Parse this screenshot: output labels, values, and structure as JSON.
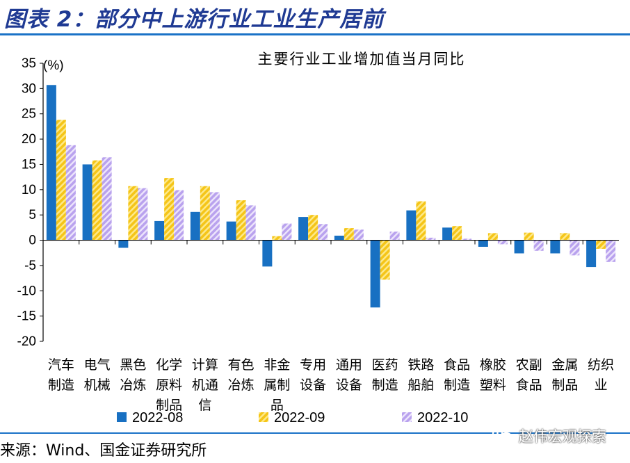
{
  "figure": {
    "title": "图表 2：部分中上游行业工业生产居前",
    "source": "来源：Wind、国金证券研究所",
    "watermark": "赵伟宏观探索"
  },
  "colors": {
    "accent": "#1a72c7",
    "title": "#1f3a93",
    "s1": "#1870c2",
    "s2": "#f5c518",
    "s3": "#b9a2ee"
  },
  "chart_data": {
    "type": "bar",
    "title": "主要行业工业增加值当月同比",
    "unit": "(%)",
    "ylim": [
      -20,
      35
    ],
    "yticks": [
      35,
      30,
      25,
      20,
      15,
      10,
      5,
      0,
      -5,
      -10,
      -15,
      -20
    ],
    "categories": [
      [
        "汽车",
        "制造"
      ],
      [
        "电气",
        "机械"
      ],
      [
        "黑色",
        "冶炼"
      ],
      [
        "化学",
        "原料",
        "制品"
      ],
      [
        "计算",
        "机通",
        "信"
      ],
      [
        "有色",
        "冶炼"
      ],
      [
        "非金",
        "属制",
        "品"
      ],
      [
        "专用",
        "设备"
      ],
      [
        "通用",
        "设备"
      ],
      [
        "医药",
        "制造"
      ],
      [
        "铁路",
        "船舶"
      ],
      [
        "食品",
        "制造"
      ],
      [
        "橡胶",
        "塑料"
      ],
      [
        "农副",
        "食品"
      ],
      [
        "金属",
        "制品"
      ],
      [
        "纺织",
        "业"
      ]
    ],
    "series": [
      {
        "name": "2022-08",
        "pattern": "solid",
        "values": [
          30.7,
          15.0,
          -1.5,
          3.8,
          5.6,
          3.7,
          -5.2,
          4.6,
          0.9,
          -13.3,
          5.9,
          2.5,
          -1.3,
          -2.6,
          -2.6,
          -5.3
        ]
      },
      {
        "name": "2022-09",
        "pattern": "stripe-yellow",
        "values": [
          23.8,
          15.8,
          10.7,
          12.3,
          10.7,
          7.9,
          0.8,
          5.0,
          2.4,
          -7.8,
          7.7,
          2.8,
          1.4,
          1.5,
          1.4,
          -1.7
        ]
      },
      {
        "name": "2022-10",
        "pattern": "stripe-purple",
        "values": [
          18.8,
          16.4,
          10.3,
          9.9,
          9.5,
          6.9,
          3.3,
          3.2,
          2.1,
          1.7,
          0.5,
          0.3,
          -0.8,
          -2.1,
          -3.0,
          -4.3
        ]
      }
    ],
    "grid": false,
    "legend": "bottom"
  }
}
